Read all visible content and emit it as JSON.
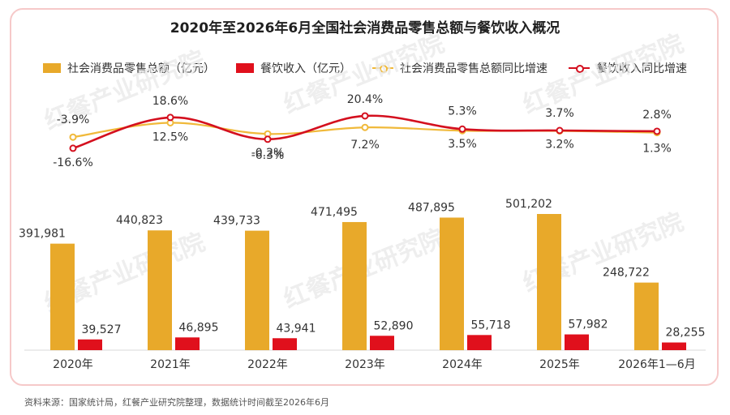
{
  "title": "2020年至2026年6月全国社会消费品零售总额与餐饮收入概况",
  "source": "资料来源：国家统计局，红餐产业研究院整理，数据统计时间截至2026年6月",
  "watermark": "红餐产业研究院",
  "colors": {
    "retail_bar": "#E8A92A",
    "catering_bar": "#E0101C",
    "retail_line": "#F0B93A",
    "catering_line": "#D40F1E"
  },
  "chart_data": {
    "type": "bar",
    "categories": [
      "2020年",
      "2021年",
      "2022年",
      "2023年",
      "2024年",
      "2025年",
      "2026年1—6月"
    ],
    "series": [
      {
        "name": "社会消费品零售总额（亿元）",
        "type": "bar",
        "values": [
          391981,
          440823,
          439733,
          471495,
          487895,
          501202,
          248722
        ],
        "labels": [
          "391,981",
          "440,823",
          "439,733",
          "471,495",
          "487,895",
          "501,202",
          "248,722"
        ]
      },
      {
        "name": "餐饮收入（亿元）",
        "type": "bar",
        "values": [
          39527,
          46895,
          43941,
          52890,
          55718,
          57982,
          28255
        ],
        "labels": [
          "39,527",
          "46,895",
          "43,941",
          "52,890",
          "55,718",
          "57,982",
          "28,255"
        ]
      },
      {
        "name": "社会消费品零售总额同比增速",
        "type": "line",
        "values": [
          -3.9,
          12.5,
          -0.2,
          7.2,
          3.5,
          3.2,
          1.3
        ],
        "labels": [
          "-3.9%",
          "12.5%",
          "-0.2%",
          "7.2%",
          "3.5%",
          "3.2%",
          "1.3%"
        ]
      },
      {
        "name": "餐饮收入同比增速",
        "type": "line",
        "values": [
          -16.6,
          18.6,
          -6.3,
          20.4,
          5.3,
          3.7,
          2.8
        ],
        "labels": [
          "-16.6%",
          "18.6%",
          "-6.3%",
          "20.4%",
          "5.3%",
          "3.7%",
          "2.8%"
        ]
      }
    ],
    "legend_position": "top",
    "grid": false
  }
}
